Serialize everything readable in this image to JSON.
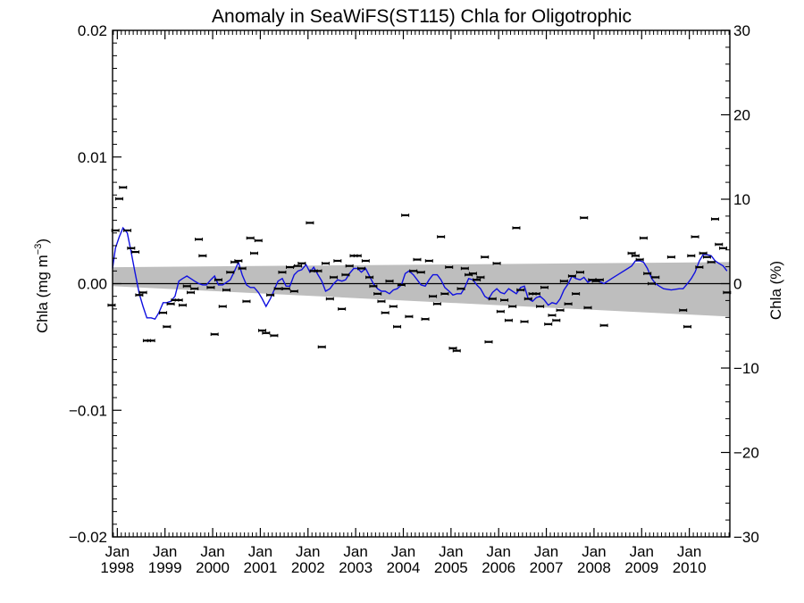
{
  "chart_data": {
    "type": "scatter",
    "title": "Anomaly in SeaWiFS(ST115) Chla for Oligotrophic",
    "ylabel_left": "Chla (mg m",
    "ylabel_left_sup": "−3",
    "ylabel_left_close": ")",
    "ylabel_right": "Chla (%)",
    "ylim_left": [
      -0.02,
      0.02
    ],
    "ylim_right": [
      -30,
      30
    ],
    "xlim": [
      1997.9,
      2010.85
    ],
    "grid": false,
    "legend": "none",
    "left_ticks": [
      {
        "value": 0.02,
        "label": "0.02"
      },
      {
        "value": 0.01,
        "label": "0.01"
      },
      {
        "value": 0.0,
        "label": "0.00"
      },
      {
        "value": -0.01,
        "label": "−0.01"
      },
      {
        "value": -0.02,
        "label": "−0.02"
      }
    ],
    "right_ticks": [
      {
        "value": 30,
        "label": "30"
      },
      {
        "value": 20,
        "label": "20"
      },
      {
        "value": 10,
        "label": "10"
      },
      {
        "value": 0,
        "label": "0"
      },
      {
        "value": -10,
        "label": "−10"
      },
      {
        "value": -20,
        "label": "−20"
      },
      {
        "value": -30,
        "label": "−30"
      }
    ],
    "x_ticks": [
      {
        "value": 1998.0,
        "month": "Jan",
        "year": "1998"
      },
      {
        "value": 1999.0,
        "month": "Jan",
        "year": "1999"
      },
      {
        "value": 2000.0,
        "month": "Jan",
        "year": "2000"
      },
      {
        "value": 2001.0,
        "month": "Jan",
        "year": "2001"
      },
      {
        "value": 2002.0,
        "month": "Jan",
        "year": "2002"
      },
      {
        "value": 2003.0,
        "month": "Jan",
        "year": "2003"
      },
      {
        "value": 2004.0,
        "month": "Jan",
        "year": "2004"
      },
      {
        "value": 2005.0,
        "month": "Jan",
        "year": "2005"
      },
      {
        "value": 2006.0,
        "month": "Jan",
        "year": "2006"
      },
      {
        "value": 2007.0,
        "month": "Jan",
        "year": "2007"
      },
      {
        "value": 2008.0,
        "month": "Jan",
        "year": "2008"
      },
      {
        "value": 2009.0,
        "month": "Jan",
        "year": "2009"
      },
      {
        "value": 2010.0,
        "month": "Jan",
        "year": "2010"
      }
    ],
    "trend_band": {
      "x_start": 1997.9,
      "x_end": 2010.85,
      "upper_start": 0.0013,
      "upper_end": 0.0017,
      "lower_start": -0.0002,
      "lower_end": -0.0026
    },
    "zero_line": 0.0,
    "monthly_points": [
      [
        1997.88,
        -0.0017
      ],
      [
        1997.96,
        0.0042
      ],
      [
        1998.04,
        0.0067
      ],
      [
        1998.12,
        0.0076
      ],
      [
        1998.21,
        0.0042
      ],
      [
        1998.29,
        0.0028
      ],
      [
        1998.38,
        0.0025
      ],
      [
        1998.46,
        -0.0009
      ],
      [
        1998.54,
        -0.0007
      ],
      [
        1998.62,
        -0.0045
      ],
      [
        1998.71,
        -0.0045
      ],
      [
        1998.96,
        -0.0023
      ],
      [
        1999.04,
        -0.0034
      ],
      [
        1999.12,
        -0.0016
      ],
      [
        1999.21,
        -0.0013
      ],
      [
        1999.29,
        -0.0013
      ],
      [
        1999.37,
        -0.0017
      ],
      [
        1999.46,
        -0.0002
      ],
      [
        1999.54,
        -0.0007
      ],
      [
        1999.62,
        -0.0004
      ],
      [
        1999.71,
        0.0035
      ],
      [
        1999.79,
        0.0022
      ],
      [
        1999.96,
        -0.0003
      ],
      [
        2000.04,
        -0.004
      ],
      [
        2000.12,
        0.0003
      ],
      [
        2000.21,
        -0.0018
      ],
      [
        2000.29,
        -0.0005
      ],
      [
        2000.37,
        0.0009
      ],
      [
        2000.46,
        0.0017
      ],
      [
        2000.54,
        0.0018
      ],
      [
        2000.62,
        0.0012
      ],
      [
        2000.71,
        -0.0014
      ],
      [
        2000.79,
        0.0036
      ],
      [
        2000.87,
        0.0024
      ],
      [
        2000.96,
        0.0034
      ],
      [
        2001.04,
        -0.0037
      ],
      [
        2001.12,
        -0.0039
      ],
      [
        2001.21,
        -0.0009
      ],
      [
        2001.29,
        -0.0041
      ],
      [
        2001.37,
        -0.0004
      ],
      [
        2001.46,
        0.0009
      ],
      [
        2001.54,
        -0.0004
      ],
      [
        2001.62,
        0.0013
      ],
      [
        2001.71,
        -0.0006
      ],
      [
        2001.79,
        0.0014
      ],
      [
        2001.87,
        0.0016
      ],
      [
        2002.04,
        0.0048
      ],
      [
        2002.12,
        0.001
      ],
      [
        2002.21,
        0.001
      ],
      [
        2002.29,
        -0.005
      ],
      [
        2002.37,
        0.0016
      ],
      [
        2002.46,
        -0.0012
      ],
      [
        2002.54,
        0.0005
      ],
      [
        2002.62,
        0.0018
      ],
      [
        2002.71,
        -0.002
      ],
      [
        2002.79,
        0.0007
      ],
      [
        2002.87,
        0.0014
      ],
      [
        2002.96,
        0.0022
      ],
      [
        2003.04,
        0.0022
      ],
      [
        2003.12,
        0.0012
      ],
      [
        2003.21,
        0.0018
      ],
      [
        2003.29,
        0.0005
      ],
      [
        2003.37,
        -0.0002
      ],
      [
        2003.46,
        -0.0008
      ],
      [
        2003.54,
        -0.0014
      ],
      [
        2003.62,
        -0.0023
      ],
      [
        2003.71,
        0.0002
      ],
      [
        2003.79,
        -0.0018
      ],
      [
        2003.87,
        -0.0034
      ],
      [
        2003.96,
        -0.0001
      ],
      [
        2004.04,
        0.0054
      ],
      [
        2004.12,
        -0.0026
      ],
      [
        2004.21,
        0.001
      ],
      [
        2004.29,
        0.0019
      ],
      [
        2004.37,
        0.0009
      ],
      [
        2004.46,
        -0.0028
      ],
      [
        2004.54,
        0.0018
      ],
      [
        2004.62,
        -0.001
      ],
      [
        2004.71,
        -0.0016
      ],
      [
        2004.79,
        0.0037
      ],
      [
        2004.87,
        -0.0008
      ],
      [
        2004.96,
        0.0013
      ],
      [
        2005.04,
        -0.0051
      ],
      [
        2005.12,
        -0.0053
      ],
      [
        2005.21,
        -0.0004
      ],
      [
        2005.29,
        0.0012
      ],
      [
        2005.37,
        0.0007
      ],
      [
        2005.46,
        0.0008
      ],
      [
        2005.54,
        0.0003
      ],
      [
        2005.62,
        0.0005
      ],
      [
        2005.71,
        0.0021
      ],
      [
        2005.79,
        -0.0046
      ],
      [
        2005.87,
        -0.0012
      ],
      [
        2005.96,
        0.0016
      ],
      [
        2006.04,
        -0.0022
      ],
      [
        2006.12,
        -0.0013
      ],
      [
        2006.21,
        -0.0029
      ],
      [
        2006.29,
        -0.0018
      ],
      [
        2006.37,
        0.0044
      ],
      [
        2006.46,
        -0.0005
      ],
      [
        2006.54,
        -0.003
      ],
      [
        2006.62,
        -0.0012
      ],
      [
        2006.71,
        -0.0008
      ],
      [
        2006.79,
        -0.0008
      ],
      [
        2006.87,
        -0.0018
      ],
      [
        2006.96,
        -0.0003
      ],
      [
        2007.04,
        -0.0032
      ],
      [
        2007.12,
        -0.0025
      ],
      [
        2007.21,
        -0.0029
      ],
      [
        2007.29,
        -0.0021
      ],
      [
        2007.37,
        0.0002
      ],
      [
        2007.46,
        -0.0016
      ],
      [
        2007.54,
        0.0006
      ],
      [
        2007.62,
        -0.0008
      ],
      [
        2007.71,
        0.0009
      ],
      [
        2007.79,
        0.0052
      ],
      [
        2007.87,
        -0.0019
      ],
      [
        2007.96,
        0.0003
      ],
      [
        2008.04,
        0.0002
      ],
      [
        2008.12,
        0.0003
      ],
      [
        2008.21,
        -0.0033
      ],
      [
        2008.79,
        0.0024
      ],
      [
        2008.87,
        0.0022
      ],
      [
        2008.96,
        0.0019
      ],
      [
        2009.04,
        0.0036
      ],
      [
        2009.12,
        0.0008
      ],
      [
        2009.21,
        0.0
      ],
      [
        2009.29,
        0.0005
      ],
      [
        2009.62,
        0.0021
      ],
      [
        2009.87,
        -0.0021
      ],
      [
        2009.96,
        -0.0034
      ],
      [
        2010.04,
        0.0022
      ],
      [
        2010.12,
        0.0037
      ],
      [
        2010.21,
        0.0013
      ],
      [
        2010.29,
        0.0024
      ],
      [
        2010.37,
        0.0021
      ],
      [
        2010.46,
        0.0017
      ],
      [
        2010.54,
        0.0051
      ],
      [
        2010.62,
        0.0031
      ],
      [
        2010.71,
        0.0028
      ],
      [
        2010.79,
        -0.0007
      ]
    ],
    "smoothed_line": [
      [
        1997.88,
        0.0012
      ],
      [
        1997.96,
        0.0028
      ],
      [
        1998.04,
        0.0037
      ],
      [
        1998.12,
        0.0044
      ],
      [
        1998.21,
        0.004
      ],
      [
        1998.29,
        0.0025
      ],
      [
        1998.37,
        0.0009
      ],
      [
        1998.46,
        -0.0008
      ],
      [
        1998.54,
        -0.0018
      ],
      [
        1998.62,
        -0.0027
      ],
      [
        1998.71,
        -0.0027
      ],
      [
        1998.79,
        -0.0028
      ],
      [
        1998.87,
        -0.0023
      ],
      [
        1998.96,
        -0.0015
      ],
      [
        1999.04,
        -0.0015
      ],
      [
        1999.12,
        -0.0014
      ],
      [
        1999.21,
        -0.001
      ],
      [
        1999.29,
        0.0002
      ],
      [
        1999.37,
        0.0004
      ],
      [
        1999.46,
        0.0006
      ],
      [
        1999.54,
        0.0004
      ],
      [
        1999.62,
        0.0002
      ],
      [
        1999.71,
        0.0
      ],
      [
        1999.79,
        -0.0001
      ],
      [
        1999.87,
        -0.0001
      ],
      [
        1999.96,
        0.0003
      ],
      [
        2000.04,
        0.0006
      ],
      [
        2000.12,
        -0.0001
      ],
      [
        2000.21,
        -0.0001
      ],
      [
        2000.29,
        0.0001
      ],
      [
        2000.37,
        0.0003
      ],
      [
        2000.46,
        0.001
      ],
      [
        2000.54,
        0.0017
      ],
      [
        2000.62,
        0.0007
      ],
      [
        2000.71,
        -0.0001
      ],
      [
        2000.79,
        -0.0003
      ],
      [
        2000.87,
        -0.0003
      ],
      [
        2000.96,
        -0.0007
      ],
      [
        2001.04,
        -0.0012
      ],
      [
        2001.12,
        -0.0018
      ],
      [
        2001.21,
        -0.0012
      ],
      [
        2001.29,
        -0.0005
      ],
      [
        2001.37,
        0.0002
      ],
      [
        2001.46,
        0.0004
      ],
      [
        2001.54,
        -0.0002
      ],
      [
        2001.62,
        -0.0002
      ],
      [
        2001.71,
        0.0007
      ],
      [
        2001.79,
        0.001
      ],
      [
        2001.87,
        0.0011
      ],
      [
        2001.96,
        0.0015
      ],
      [
        2002.04,
        0.0009
      ],
      [
        2002.12,
        0.0013
      ],
      [
        2002.21,
        0.0007
      ],
      [
        2002.29,
        0.0002
      ],
      [
        2002.37,
        -0.0006
      ],
      [
        2002.46,
        -0.0004
      ],
      [
        2002.54,
        0.0
      ],
      [
        2002.62,
        0.0003
      ],
      [
        2002.71,
        0.0002
      ],
      [
        2002.79,
        0.0003
      ],
      [
        2002.87,
        0.0008
      ],
      [
        2002.96,
        0.0012
      ],
      [
        2003.04,
        0.0012
      ],
      [
        2003.12,
        0.0009
      ],
      [
        2003.21,
        0.0012
      ],
      [
        2003.29,
        0.0006
      ],
      [
        2003.37,
        0.0
      ],
      [
        2003.46,
        -0.0004
      ],
      [
        2003.54,
        -0.0006
      ],
      [
        2003.62,
        -0.0006
      ],
      [
        2003.71,
        -0.0008
      ],
      [
        2003.79,
        -0.0005
      ],
      [
        2003.87,
        -0.0004
      ],
      [
        2003.96,
        -0.0001
      ],
      [
        2004.04,
        0.0008
      ],
      [
        2004.12,
        0.001
      ],
      [
        2004.21,
        0.0007
      ],
      [
        2004.29,
        0.0003
      ],
      [
        2004.37,
        -0.0001
      ],
      [
        2004.46,
        -0.0002
      ],
      [
        2004.54,
        0.0003
      ],
      [
        2004.62,
        0.0007
      ],
      [
        2004.71,
        0.0007
      ],
      [
        2004.79,
        0.0003
      ],
      [
        2004.87,
        -0.0003
      ],
      [
        2004.96,
        -0.0006
      ],
      [
        2005.04,
        -0.0009
      ],
      [
        2005.12,
        -0.0008
      ],
      [
        2005.21,
        -0.0008
      ],
      [
        2005.29,
        -0.0003
      ],
      [
        2005.37,
        0.0004
      ],
      [
        2005.46,
        0.0003
      ],
      [
        2005.54,
        -0.0001
      ],
      [
        2005.62,
        -0.0004
      ],
      [
        2005.71,
        -0.001
      ],
      [
        2005.79,
        -0.0012
      ],
      [
        2005.87,
        -0.0007
      ],
      [
        2005.96,
        -0.0004
      ],
      [
        2006.04,
        -0.0007
      ],
      [
        2006.12,
        -0.0008
      ],
      [
        2006.21,
        -0.0004
      ],
      [
        2006.29,
        -0.0006
      ],
      [
        2006.37,
        -0.0008
      ],
      [
        2006.46,
        -0.0003
      ],
      [
        2006.54,
        -0.0002
      ],
      [
        2006.62,
        -0.0012
      ],
      [
        2006.71,
        -0.0014
      ],
      [
        2006.79,
        -0.0011
      ],
      [
        2006.87,
        -0.001
      ],
      [
        2006.96,
        -0.0013
      ],
      [
        2007.04,
        -0.0017
      ],
      [
        2007.12,
        -0.0015
      ],
      [
        2007.21,
        -0.0016
      ],
      [
        2007.29,
        -0.0012
      ],
      [
        2007.37,
        -0.0005
      ],
      [
        2007.46,
        0.0
      ],
      [
        2007.54,
        0.0006
      ],
      [
        2007.62,
        0.0004
      ],
      [
        2007.71,
        0.0003
      ],
      [
        2007.79,
        0.0005
      ],
      [
        2007.87,
        0.0001
      ],
      [
        2007.96,
        0.0003
      ],
      [
        2008.04,
        0.0003
      ],
      [
        2008.21,
        0.0
      ],
      [
        2008.37,
        0.0004
      ],
      [
        2008.54,
        0.0008
      ],
      [
        2008.71,
        0.0012
      ],
      [
        2008.79,
        0.0014
      ],
      [
        2008.87,
        0.0018
      ],
      [
        2008.96,
        0.0018
      ],
      [
        2009.04,
        0.0017
      ],
      [
        2009.12,
        0.0012
      ],
      [
        2009.21,
        0.0004
      ],
      [
        2009.29,
        0.0
      ],
      [
        2009.37,
        -0.0002
      ],
      [
        2009.46,
        -0.0004
      ],
      [
        2009.62,
        -0.0005
      ],
      [
        2009.79,
        -0.0004
      ],
      [
        2009.87,
        -0.0004
      ],
      [
        2009.96,
        0.0
      ],
      [
        2010.04,
        0.0004
      ],
      [
        2010.12,
        0.0009
      ],
      [
        2010.21,
        0.0018
      ],
      [
        2010.29,
        0.0023
      ],
      [
        2010.37,
        0.0023
      ],
      [
        2010.46,
        0.0022
      ],
      [
        2010.54,
        0.0018
      ],
      [
        2010.62,
        0.0016
      ],
      [
        2010.71,
        0.0014
      ],
      [
        2010.79,
        0.001
      ]
    ],
    "colors": {
      "line": "#1010e0",
      "band": "#bebebe",
      "points": "#000000",
      "axes": "#000000"
    }
  }
}
